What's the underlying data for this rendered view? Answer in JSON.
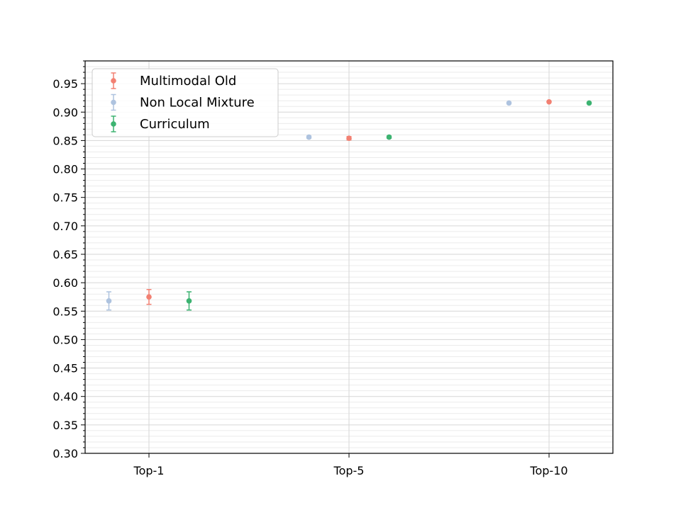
{
  "chart_data": {
    "type": "scatter",
    "title": "",
    "xlabel": "",
    "ylabel": "",
    "categories": [
      "Top-1",
      "Top-5",
      "Top-10"
    ],
    "ylim": [
      0.3,
      0.99
    ],
    "yticks": [
      "0.30",
      "0.35",
      "0.40",
      "0.45",
      "0.50",
      "0.55",
      "0.60",
      "0.65",
      "0.70",
      "0.75",
      "0.80",
      "0.85",
      "0.90",
      "0.95"
    ],
    "grid": true,
    "legend_position": "top-left",
    "series": [
      {
        "name": "Multimodal Old",
        "color": "#f28072",
        "offset": 0,
        "values": [
          0.575,
          0.854,
          0.918
        ],
        "errors": [
          0.013,
          0.003,
          0.001
        ]
      },
      {
        "name": "Non Local Mixture",
        "color": "#aec3df",
        "offset": -1,
        "values": [
          0.568,
          0.856,
          0.916
        ],
        "errors": [
          0.016,
          0.002,
          0.001
        ]
      },
      {
        "name": "Curriculum",
        "color": "#3cb371",
        "offset": 1,
        "values": [
          0.568,
          0.856,
          0.916
        ],
        "errors": [
          0.016,
          0.002,
          0.001
        ]
      }
    ]
  }
}
